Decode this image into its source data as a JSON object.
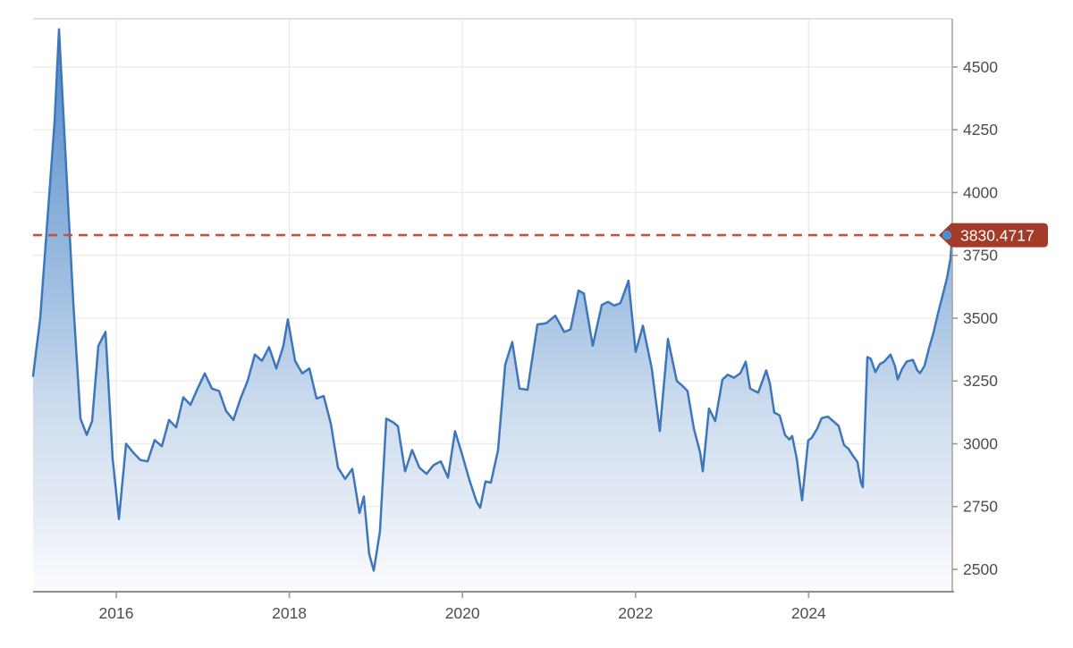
{
  "chart_data": {
    "type": "area",
    "title": "",
    "xlabel": "",
    "ylabel": "",
    "legend": "none",
    "grid": true,
    "current_value": 3830.4717,
    "current_value_label": "3830.4717",
    "x_domain": [
      2015.039,
      2025.66
    ],
    "y_domain": [
      2411,
      4692
    ],
    "x_axis": {
      "ticks": [
        2016,
        2018,
        2020,
        2022,
        2024
      ],
      "tick_labels": [
        "2016",
        "2018",
        "2020",
        "2022",
        "2024"
      ]
    },
    "y_axis": {
      "position": "right",
      "ticks": [
        2500,
        2750,
        3000,
        3250,
        3500,
        3750,
        4000,
        4250,
        4500
      ],
      "tick_labels": [
        "2500",
        "2750",
        "3000",
        "3250",
        "3500",
        "3750",
        "4000",
        "4250",
        "4500"
      ]
    },
    "colors": {
      "line": "#3e76bb",
      "dot": "#4a8fd3",
      "dashed_reference_line": "#c0523f",
      "badge_background": "#a43a28",
      "badge_text": "#ffffff",
      "gridline": "#ebebeb",
      "top_border": "#e0e0e0",
      "right_axis": "#a6a6a6",
      "bottom_axis": "#8f8f8f",
      "tick": "#999999",
      "tick_label": "#4d4d4d",
      "area_stops": [
        [
          "0%",
          "#5589ca"
        ],
        [
          "12%",
          "#6595d0"
        ],
        [
          "50%",
          "#a8c4e4"
        ],
        [
          "67%",
          "#ccdcee"
        ],
        [
          "84%",
          "#e3eaf4"
        ],
        [
          "100%",
          "#fbfcfe"
        ]
      ]
    },
    "series": [
      [
        2015.039,
        3270
      ],
      [
        2015.122,
        3500
      ],
      [
        2015.204,
        3890
      ],
      [
        2015.287,
        4280
      ],
      [
        2015.339,
        4650
      ],
      [
        2015.421,
        4100
      ],
      [
        2015.504,
        3560
      ],
      [
        2015.587,
        3100
      ],
      [
        2015.659,
        3035
      ],
      [
        2015.721,
        3090
      ],
      [
        2015.793,
        3390
      ],
      [
        2015.876,
        3445
      ],
      [
        2015.959,
        2940
      ],
      [
        2016.031,
        2700
      ],
      [
        2016.114,
        3000
      ],
      [
        2016.196,
        2965
      ],
      [
        2016.279,
        2935
      ],
      [
        2016.362,
        2930
      ],
      [
        2016.444,
        3015
      ],
      [
        2016.527,
        2990
      ],
      [
        2016.609,
        3095
      ],
      [
        2016.692,
        3065
      ],
      [
        2016.775,
        3185
      ],
      [
        2016.857,
        3155
      ],
      [
        2016.94,
        3220
      ],
      [
        2017.023,
        3280
      ],
      [
        2017.105,
        3220
      ],
      [
        2017.188,
        3210
      ],
      [
        2017.27,
        3130
      ],
      [
        2017.353,
        3095
      ],
      [
        2017.436,
        3180
      ],
      [
        2017.518,
        3250
      ],
      [
        2017.601,
        3355
      ],
      [
        2017.684,
        3330
      ],
      [
        2017.766,
        3385
      ],
      [
        2017.849,
        3300
      ],
      [
        2017.931,
        3390
      ],
      [
        2017.983,
        3495
      ],
      [
        2018.066,
        3330
      ],
      [
        2018.149,
        3280
      ],
      [
        2018.231,
        3300
      ],
      [
        2018.314,
        3180
      ],
      [
        2018.397,
        3190
      ],
      [
        2018.479,
        3080
      ],
      [
        2018.562,
        2905
      ],
      [
        2018.645,
        2860
      ],
      [
        2018.727,
        2900
      ],
      [
        2018.81,
        2724
      ],
      [
        2018.861,
        2790
      ],
      [
        2018.923,
        2560
      ],
      [
        2018.975,
        2495
      ],
      [
        2019.047,
        2650
      ],
      [
        2019.12,
        3100
      ],
      [
        2019.202,
        3085
      ],
      [
        2019.254,
        3070
      ],
      [
        2019.337,
        2890
      ],
      [
        2019.419,
        2975
      ],
      [
        2019.502,
        2905
      ],
      [
        2019.585,
        2880
      ],
      [
        2019.667,
        2915
      ],
      [
        2019.75,
        2930
      ],
      [
        2019.833,
        2865
      ],
      [
        2019.915,
        3050
      ],
      [
        2019.998,
        2955
      ],
      [
        2020.081,
        2855
      ],
      [
        2020.163,
        2770
      ],
      [
        2020.205,
        2745
      ],
      [
        2020.267,
        2850
      ],
      [
        2020.329,
        2845
      ],
      [
        2020.411,
        2975
      ],
      [
        2020.494,
        3315
      ],
      [
        2020.576,
        3405
      ],
      [
        2020.659,
        3220
      ],
      [
        2020.752,
        3215
      ],
      [
        2020.866,
        3475
      ],
      [
        2020.969,
        3480
      ],
      [
        2021.073,
        3510
      ],
      [
        2021.176,
        3445
      ],
      [
        2021.248,
        3455
      ],
      [
        2021.341,
        3610
      ],
      [
        2021.403,
        3598
      ],
      [
        2021.506,
        3390
      ],
      [
        2021.61,
        3553
      ],
      [
        2021.682,
        3565
      ],
      [
        2021.754,
        3550
      ],
      [
        2021.826,
        3560
      ],
      [
        2021.919,
        3649
      ],
      [
        2022.002,
        3365
      ],
      [
        2022.085,
        3470
      ],
      [
        2022.188,
        3300
      ],
      [
        2022.281,
        3050
      ],
      [
        2022.374,
        3417
      ],
      [
        2022.477,
        3250
      ],
      [
        2022.55,
        3228
      ],
      [
        2022.601,
        3210
      ],
      [
        2022.674,
        3060
      ],
      [
        2022.746,
        2965
      ],
      [
        2022.777,
        2890
      ],
      [
        2022.849,
        3140
      ],
      [
        2022.921,
        3090
      ],
      [
        2023.004,
        3255
      ],
      [
        2023.066,
        3275
      ],
      [
        2023.138,
        3263
      ],
      [
        2023.211,
        3281
      ],
      [
        2023.273,
        3327
      ],
      [
        2023.324,
        3220
      ],
      [
        2023.417,
        3203
      ],
      [
        2023.51,
        3292
      ],
      [
        2023.552,
        3240
      ],
      [
        2023.603,
        3124
      ],
      [
        2023.665,
        3113
      ],
      [
        2023.727,
        3035
      ],
      [
        2023.779,
        3017
      ],
      [
        2023.81,
        3031
      ],
      [
        2023.862,
        2942
      ],
      [
        2023.924,
        2775
      ],
      [
        2023.996,
        3013
      ],
      [
        2024.037,
        3024
      ],
      [
        2024.099,
        3060
      ],
      [
        2024.151,
        3102
      ],
      [
        2024.223,
        3108
      ],
      [
        2024.347,
        3071
      ],
      [
        2024.409,
        2995
      ],
      [
        2024.461,
        2980
      ],
      [
        2024.512,
        2952
      ],
      [
        2024.564,
        2928
      ],
      [
        2024.605,
        2845
      ],
      [
        2024.626,
        2827
      ],
      [
        2024.678,
        3345
      ],
      [
        2024.719,
        3338
      ],
      [
        2024.771,
        3285
      ],
      [
        2024.822,
        3317
      ],
      [
        2024.874,
        3327
      ],
      [
        2024.946,
        3355
      ],
      [
        2024.998,
        3310
      ],
      [
        2025.029,
        3256
      ],
      [
        2025.081,
        3299
      ],
      [
        2025.132,
        3327
      ],
      [
        2025.205,
        3334
      ],
      [
        2025.256,
        3292
      ],
      [
        2025.287,
        3281
      ],
      [
        2025.339,
        3310
      ],
      [
        2025.391,
        3381
      ],
      [
        2025.442,
        3441
      ],
      [
        2025.494,
        3517
      ],
      [
        2025.546,
        3588
      ],
      [
        2025.598,
        3659
      ],
      [
        2025.639,
        3737
      ],
      [
        2025.66,
        3830.4717
      ]
    ]
  }
}
